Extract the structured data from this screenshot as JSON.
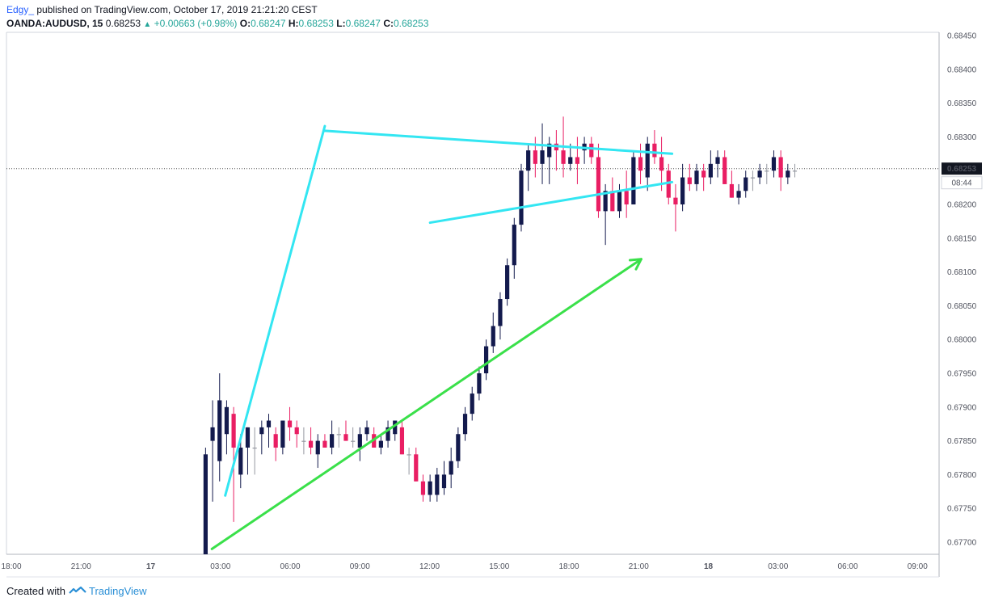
{
  "header": {
    "author": "Edgy_",
    "published": "published on TradingView.com, October 17, 2019 21:21:20 CEST",
    "symbol": "OANDA:AUDUSD, 15",
    "last": "0.68253",
    "change": "+0.00663 (+0.98%)",
    "ohlc": [
      {
        "label": "O:",
        "value": "0.68247"
      },
      {
        "label": "H:",
        "value": "0.68253"
      },
      {
        "label": "L:",
        "value": "0.68247"
      },
      {
        "label": "C:",
        "value": "0.68253"
      }
    ]
  },
  "footer": {
    "created_with": "Created with",
    "brand": "TradingView"
  },
  "colors": {
    "up": "#131a4d",
    "down": "#e91e63",
    "neutral": "#9598a1",
    "pattern": "#33e6f2",
    "arrow": "#3ae04a",
    "axis": "#50535e"
  },
  "chart_data": {
    "type": "candlestick",
    "ylim": [
      0.6768,
      0.6846
    ],
    "y_ticks": [
      "0.68450",
      "0.68400",
      "0.68350",
      "0.68300",
      "0.68250",
      "0.68200",
      "0.68150",
      "0.68100",
      "0.68050",
      "0.68000",
      "0.67950",
      "0.67900",
      "0.67850",
      "0.67800",
      "0.67750",
      "0.67700"
    ],
    "x_ticks": [
      "18:00",
      "21:00",
      "17",
      "03:00",
      "06:00",
      "09:00",
      "12:00",
      "15:00",
      "18:00",
      "21:00",
      "18",
      "03:00",
      "06:00",
      "09:00"
    ],
    "last_price_label": "0.68253",
    "countdown_label": "08:44",
    "candles": [
      {
        "o": 0.6762,
        "h": 0.6784,
        "l": 0.6755,
        "c": 0.6783
      },
      {
        "o": 0.6785,
        "h": 0.6791,
        "l": 0.6776,
        "c": 0.6787
      },
      {
        "o": 0.6782,
        "h": 0.6795,
        "l": 0.6779,
        "c": 0.6791
      },
      {
        "o": 0.6786,
        "h": 0.6791,
        "l": 0.6783,
        "c": 0.679
      },
      {
        "o": 0.6789,
        "h": 0.679,
        "l": 0.6773,
        "c": 0.6784
      },
      {
        "o": 0.678,
        "h": 0.6786,
        "l": 0.6778,
        "c": 0.6784
      },
      {
        "o": 0.6784,
        "h": 0.6787,
        "l": 0.678,
        "c": 0.6787
      },
      {
        "o": 0.6784,
        "h": 0.6787,
        "l": 0.678,
        "c": 0.6784
      },
      {
        "o": 0.6786,
        "h": 0.6788,
        "l": 0.6783,
        "c": 0.6787
      },
      {
        "o": 0.6787,
        "h": 0.6789,
        "l": 0.6784,
        "c": 0.6788
      },
      {
        "o": 0.6786,
        "h": 0.6787,
        "l": 0.6782,
        "c": 0.6784
      },
      {
        "o": 0.6784,
        "h": 0.6788,
        "l": 0.6783,
        "c": 0.6788
      },
      {
        "o": 0.6788,
        "h": 0.679,
        "l": 0.6785,
        "c": 0.6787
      },
      {
        "o": 0.6787,
        "h": 0.6788,
        "l": 0.6784,
        "c": 0.6786
      },
      {
        "o": 0.6785,
        "h": 0.6787,
        "l": 0.6783,
        "c": 0.6785
      },
      {
        "o": 0.6785,
        "h": 0.6787,
        "l": 0.6783,
        "c": 0.6784
      },
      {
        "o": 0.6783,
        "h": 0.6786,
        "l": 0.6781,
        "c": 0.6785
      },
      {
        "o": 0.6785,
        "h": 0.6786,
        "l": 0.6784,
        "c": 0.6784
      },
      {
        "o": 0.6784,
        "h": 0.6788,
        "l": 0.6783,
        "c": 0.6786
      },
      {
        "o": 0.6786,
        "h": 0.6787,
        "l": 0.6784,
        "c": 0.6786
      },
      {
        "o": 0.6786,
        "h": 0.6788,
        "l": 0.6785,
        "c": 0.6785
      },
      {
        "o": 0.6785,
        "h": 0.6787,
        "l": 0.6784,
        "c": 0.6785
      },
      {
        "o": 0.6784,
        "h": 0.6787,
        "l": 0.6782,
        "c": 0.6786
      },
      {
        "o": 0.6786,
        "h": 0.6788,
        "l": 0.6785,
        "c": 0.6787
      },
      {
        "o": 0.6786,
        "h": 0.6787,
        "l": 0.6784,
        "c": 0.6784
      },
      {
        "o": 0.6784,
        "h": 0.6786,
        "l": 0.6783,
        "c": 0.6785
      },
      {
        "o": 0.6785,
        "h": 0.6788,
        "l": 0.6784,
        "c": 0.6787
      },
      {
        "o": 0.6786,
        "h": 0.6788,
        "l": 0.6785,
        "c": 0.6788
      },
      {
        "o": 0.6787,
        "h": 0.6788,
        "l": 0.6783,
        "c": 0.6783
      },
      {
        "o": 0.6783,
        "h": 0.6784,
        "l": 0.678,
        "c": 0.6783
      },
      {
        "o": 0.6783,
        "h": 0.6784,
        "l": 0.6779,
        "c": 0.6779
      },
      {
        "o": 0.6779,
        "h": 0.678,
        "l": 0.6776,
        "c": 0.6777
      },
      {
        "o": 0.6777,
        "h": 0.678,
        "l": 0.6776,
        "c": 0.6779
      },
      {
        "o": 0.6777,
        "h": 0.6781,
        "l": 0.6776,
        "c": 0.678
      },
      {
        "o": 0.6778,
        "h": 0.6782,
        "l": 0.6777,
        "c": 0.678
      },
      {
        "o": 0.678,
        "h": 0.6784,
        "l": 0.6778,
        "c": 0.6782
      },
      {
        "o": 0.6782,
        "h": 0.6787,
        "l": 0.6781,
        "c": 0.6786
      },
      {
        "o": 0.6786,
        "h": 0.679,
        "l": 0.6785,
        "c": 0.6789
      },
      {
        "o": 0.6789,
        "h": 0.6793,
        "l": 0.6788,
        "c": 0.6792
      },
      {
        "o": 0.6792,
        "h": 0.6796,
        "l": 0.6791,
        "c": 0.6795
      },
      {
        "o": 0.6795,
        "h": 0.68,
        "l": 0.6794,
        "c": 0.6799
      },
      {
        "o": 0.6799,
        "h": 0.6804,
        "l": 0.6798,
        "c": 0.6802
      },
      {
        "o": 0.6802,
        "h": 0.6807,
        "l": 0.68,
        "c": 0.6806
      },
      {
        "o": 0.6806,
        "h": 0.6812,
        "l": 0.6805,
        "c": 0.6811
      },
      {
        "o": 0.6811,
        "h": 0.6818,
        "l": 0.6809,
        "c": 0.6817
      },
      {
        "o": 0.6817,
        "h": 0.6826,
        "l": 0.6816,
        "c": 0.6825
      },
      {
        "o": 0.6825,
        "h": 0.6829,
        "l": 0.6822,
        "c": 0.6828
      },
      {
        "o": 0.6828,
        "h": 0.683,
        "l": 0.6824,
        "c": 0.6826
      },
      {
        "o": 0.6826,
        "h": 0.6832,
        "l": 0.6823,
        "c": 0.6828
      },
      {
        "o": 0.6827,
        "h": 0.683,
        "l": 0.6823,
        "c": 0.6829
      },
      {
        "o": 0.6829,
        "h": 0.6831,
        "l": 0.6825,
        "c": 0.6828
      },
      {
        "o": 0.6828,
        "h": 0.6833,
        "l": 0.6824,
        "c": 0.6826
      },
      {
        "o": 0.6826,
        "h": 0.6829,
        "l": 0.6825,
        "c": 0.6827
      },
      {
        "o": 0.6827,
        "h": 0.683,
        "l": 0.6823,
        "c": 0.6826
      },
      {
        "o": 0.6828,
        "h": 0.683,
        "l": 0.6826,
        "c": 0.6829
      },
      {
        "o": 0.6829,
        "h": 0.683,
        "l": 0.6826,
        "c": 0.6827
      },
      {
        "o": 0.6827,
        "h": 0.6829,
        "l": 0.6818,
        "c": 0.6819
      },
      {
        "o": 0.6819,
        "h": 0.6823,
        "l": 0.6814,
        "c": 0.6822
      },
      {
        "o": 0.6822,
        "h": 0.6824,
        "l": 0.6819,
        "c": 0.6819
      },
      {
        "o": 0.6819,
        "h": 0.6823,
        "l": 0.6818,
        "c": 0.6822
      },
      {
        "o": 0.6822,
        "h": 0.6825,
        "l": 0.6818,
        "c": 0.682
      },
      {
        "o": 0.682,
        "h": 0.6828,
        "l": 0.682,
        "c": 0.6827
      },
      {
        "o": 0.6827,
        "h": 0.6829,
        "l": 0.6823,
        "c": 0.6825
      },
      {
        "o": 0.6824,
        "h": 0.683,
        "l": 0.6822,
        "c": 0.6829
      },
      {
        "o": 0.6829,
        "h": 0.6831,
        "l": 0.6826,
        "c": 0.6827
      },
      {
        "o": 0.6827,
        "h": 0.683,
        "l": 0.6822,
        "c": 0.6825
      },
      {
        "o": 0.6825,
        "h": 0.6826,
        "l": 0.682,
        "c": 0.6821
      },
      {
        "o": 0.6821,
        "h": 0.6823,
        "l": 0.6816,
        "c": 0.682
      },
      {
        "o": 0.682,
        "h": 0.6826,
        "l": 0.6819,
        "c": 0.6824
      },
      {
        "o": 0.6824,
        "h": 0.6826,
        "l": 0.6822,
        "c": 0.6823
      },
      {
        "o": 0.6823,
        "h": 0.6826,
        "l": 0.6822,
        "c": 0.6825
      },
      {
        "o": 0.6825,
        "h": 0.6826,
        "l": 0.6822,
        "c": 0.6824
      },
      {
        "o": 0.6824,
        "h": 0.6828,
        "l": 0.6823,
        "c": 0.6826
      },
      {
        "o": 0.6826,
        "h": 0.6828,
        "l": 0.6824,
        "c": 0.6827
      },
      {
        "o": 0.6827,
        "h": 0.6828,
        "l": 0.6823,
        "c": 0.6823
      },
      {
        "o": 0.6823,
        "h": 0.6825,
        "l": 0.6821,
        "c": 0.6821
      },
      {
        "o": 0.6821,
        "h": 0.6823,
        "l": 0.682,
        "c": 0.6822
      },
      {
        "o": 0.6822,
        "h": 0.6825,
        "l": 0.6821,
        "c": 0.6824
      },
      {
        "o": 0.6824,
        "h": 0.6825,
        "l": 0.6822,
        "c": 0.6824
      },
      {
        "o": 0.6824,
        "h": 0.6826,
        "l": 0.6823,
        "c": 0.6825
      },
      {
        "o": 0.6825,
        "h": 0.6826,
        "l": 0.6823,
        "c": 0.6825
      },
      {
        "o": 0.6825,
        "h": 0.6828,
        "l": 0.6824,
        "c": 0.6827
      },
      {
        "o": 0.6827,
        "h": 0.6828,
        "l": 0.6822,
        "c": 0.6824
      },
      {
        "o": 0.6824,
        "h": 0.6826,
        "l": 0.6823,
        "c": 0.6825
      },
      {
        "o": 0.6825,
        "h": 0.6826,
        "l": 0.6824,
        "c": 0.6825
      }
    ],
    "trendlines": [
      {
        "name": "pole",
        "color": "#33e6f2",
        "points": [
          [
            31.3,
            0.67769
          ],
          [
            45.5,
            0.68316
          ]
        ]
      },
      {
        "name": "triangle-upper",
        "color": "#33e6f2",
        "points": [
          [
            45.5,
            0.68309
          ],
          [
            95.0,
            0.68275
          ]
        ]
      },
      {
        "name": "triangle-lower",
        "color": "#33e6f2",
        "points": [
          [
            60.5,
            0.68173
          ],
          [
            95.0,
            0.68233
          ]
        ]
      },
      {
        "name": "arrow",
        "color": "#3ae04a",
        "points": [
          [
            29.4,
            0.6769
          ],
          [
            90.6,
            0.68119
          ]
        ]
      }
    ]
  }
}
